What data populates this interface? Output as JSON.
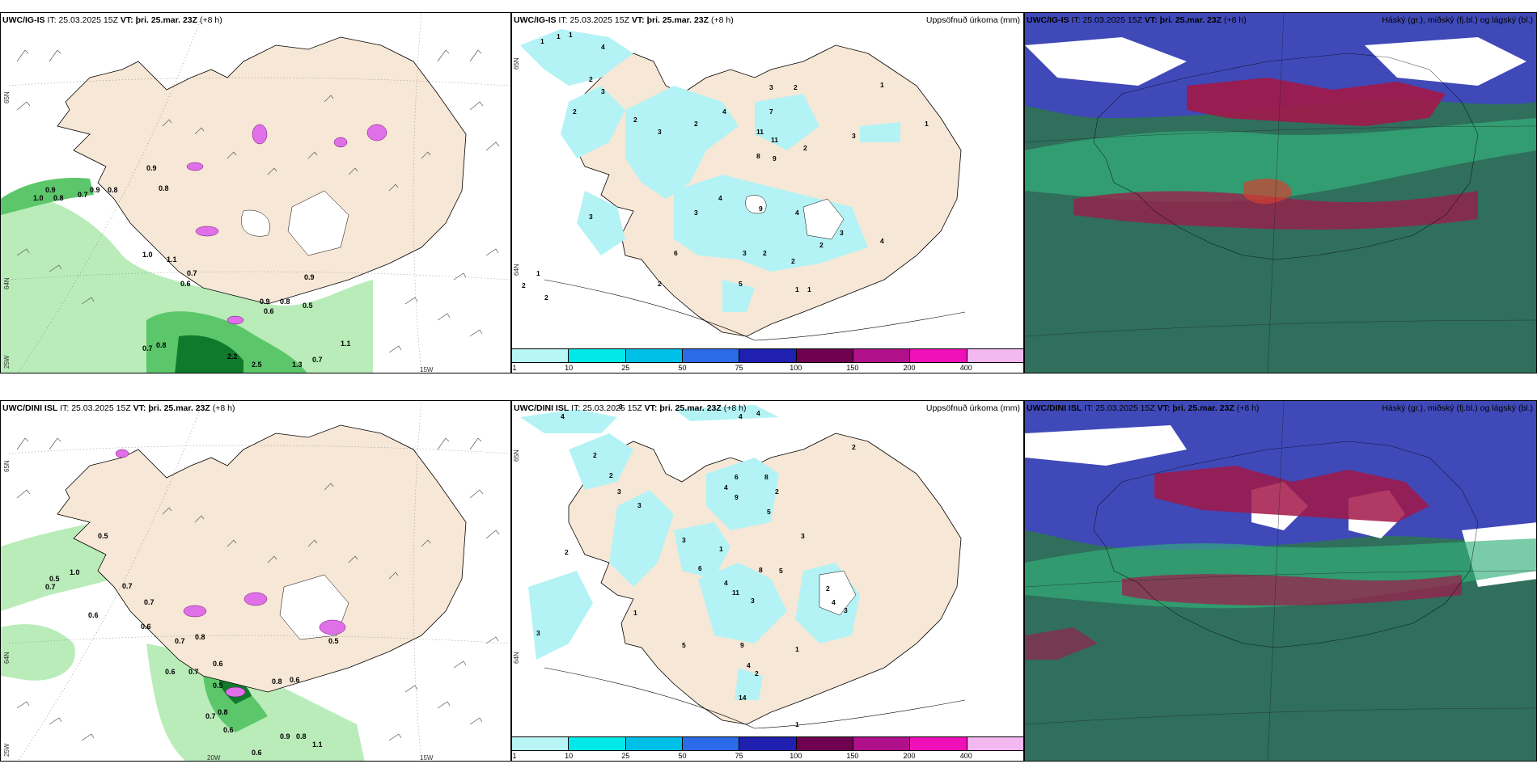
{
  "rows": [
    {
      "model": "UWC/IG-IS",
      "panels": [
        {
          "kind": "wind",
          "header_model": "UWC/IG-IS",
          "it_label": "IT:",
          "it_value": "25.03.2025 15Z",
          "vt_label": "VT:",
          "vt_value": "þri. 25.mar. 23Z",
          "lead": "(+8 h)",
          "right_title": "",
          "values": [
            "0.9",
            "0.8",
            "0.9",
            "0.8",
            "0.7",
            "1.0",
            "0.9",
            "0.8",
            "0.7",
            "0.6",
            "1.1",
            "1.0",
            "0.7",
            "0.8",
            "2.2",
            "2.5",
            "1.3",
            "0.7",
            "1.1",
            "0.9",
            "0.6",
            "0.8",
            "0.5",
            "0.9"
          ],
          "axis": {
            "lat_top": "65N",
            "lat_mid": "64N",
            "lon_left": "25W",
            "lon_right": "15W"
          }
        },
        {
          "kind": "precip",
          "header_model": "UWC/IG-IS",
          "it_label": "IT:",
          "it_value": "25.03.2025 15Z",
          "vt_label": "VT:",
          "vt_value": "þri. 25.mar. 23Z",
          "lead": "(+8 h)",
          "right_title": "Uppsöfnuð úrkoma (mm)",
          "values": [
            "1",
            "1",
            "1",
            "4",
            "2",
            "3",
            "2",
            "2",
            "3",
            "4",
            "7",
            "11",
            "11",
            "8",
            "9",
            "2",
            "3",
            "3",
            "2",
            "1",
            "2",
            "1",
            "3",
            "6",
            "3",
            "4",
            "9",
            "4",
            "3",
            "2",
            "2",
            "4",
            "2",
            "3",
            "1",
            "2",
            "2",
            "5",
            "1",
            "1",
            "2"
          ],
          "axis": {
            "lat_top": "65N",
            "lat_mid": "64N"
          }
        },
        {
          "kind": "cloud",
          "header_model": "UWC/IG-IS",
          "it_label": "IT:",
          "it_value": "25.03.2025 15Z",
          "vt_label": "VT:",
          "vt_value": "þri. 25.mar. 23Z",
          "lead": "(+8 h)",
          "right_title": "Háský (gr.), miðský (fj.bl.) og lágský (bl.)"
        }
      ]
    },
    {
      "model": "UWC/DINI ISL",
      "panels": [
        {
          "kind": "wind",
          "header_model": "UWC/DINI ISL",
          "it_label": "IT:",
          "it_value": "25.03.2025 15Z",
          "vt_label": "VT:",
          "vt_value": "þri. 25.mar. 23Z",
          "lead": "(+8 h)",
          "right_title": "",
          "values": [
            "0.5",
            "1.0",
            "0.7",
            "0.5",
            "0.7",
            "0.6",
            "0.7",
            "0.6",
            "0.8",
            "0.7",
            "0.6",
            "0.7",
            "0.6",
            "0.8",
            "0.6",
            "0.5",
            "0.8",
            "0.7",
            "0.6",
            "0.9",
            "0.8",
            "1.1",
            "0.6",
            "0.5"
          ],
          "axis": {
            "lat_top": "65N",
            "lat_mid": "64N",
            "lon_left": "25W",
            "lon_mid": "20W",
            "lon_right": "15W"
          }
        },
        {
          "kind": "precip",
          "header_model": "UWC/DINI ISL",
          "it_label": "IT:",
          "it_value": "25.03.2025 15Z",
          "vt_label": "VT:",
          "vt_value": "þri. 25.mar. 23Z",
          "lead": "(+8 h)",
          "right_title": "Uppsöfnuð úrkoma (mm)",
          "values": [
            "4",
            "3",
            "4",
            "4",
            "2",
            "2",
            "3",
            "3",
            "4",
            "9",
            "6",
            "8",
            "2",
            "3",
            "2",
            "5",
            "1",
            "3",
            "6",
            "4",
            "11",
            "8",
            "3",
            "5",
            "2",
            "4",
            "3",
            "1",
            "2",
            "5",
            "9",
            "4",
            "14",
            "1",
            "3",
            "2",
            "1"
          ],
          "axis": {
            "lat_top": "65N",
            "lat_mid": "64N"
          }
        },
        {
          "kind": "cloud",
          "header_model": "UWC/DINI ISL",
          "it_label": "IT:",
          "it_value": "25.03.2025 15Z",
          "vt_label": "VT:",
          "vt_value": "þri. 25.mar. 23Z",
          "lead": "(+8 h)",
          "right_title": "Háský (gr.), miðský (fj.bl.) og lágský (bl.)"
        }
      ]
    }
  ],
  "colorbar": {
    "ticks": [
      "1",
      "10",
      "25",
      "50",
      "75",
      "100",
      "150",
      "200",
      "400"
    ],
    "colors": [
      "#b8f6f6",
      "#00e8e8",
      "#00c0e8",
      "#2b6be8",
      "#2020b0",
      "#700050",
      "#b0108a",
      "#f010b8",
      "#f4b8f0"
    ]
  },
  "colors": {
    "land": "#f7e7d6",
    "wind_light": "#b9ecb9",
    "wind_mid": "#5cc66a",
    "wind_dark": "#107a2c",
    "precip": "#b4f3f5",
    "gust": "#e070e8",
    "cloud_sea": "#2f6f5c",
    "cloud_high": "#3f49b8",
    "cloud_red": "#a21848",
    "cloud_green": "#33b07a"
  }
}
